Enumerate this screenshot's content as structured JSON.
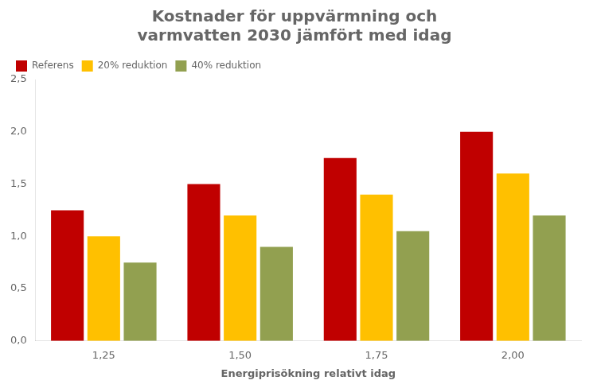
{
  "chart_data": {
    "type": "bar",
    "title": "Kostnader för uppvärmning och\nvarmvatten 2030 jämfört med idag",
    "xlabel": "Energiprisökning relativt idag",
    "categories": [
      "1,25",
      "1,50",
      "1,75",
      "2,00"
    ],
    "series": [
      {
        "name": "Referens",
        "color": "#C00000",
        "values": [
          1.25,
          1.5,
          1.75,
          2.0
        ]
      },
      {
        "name": "20% reduktion",
        "color": "#FFC000",
        "values": [
          1.0,
          1.2,
          1.4,
          1.6
        ]
      },
      {
        "name": "40% reduktion",
        "color": "#92A050",
        "values": [
          0.75,
          0.9,
          1.05,
          1.2
        ]
      }
    ],
    "ylim": [
      0,
      2.5
    ],
    "yticks": [
      {
        "value": 0.0,
        "label": "0,0"
      },
      {
        "value": 0.5,
        "label": "0,5"
      },
      {
        "value": 1.0,
        "label": "1,0"
      },
      {
        "value": 1.5,
        "label": "1,5"
      },
      {
        "value": 2.0,
        "label": "2,0"
      },
      {
        "value": 2.5,
        "label": "2,5"
      }
    ],
    "grid": false,
    "legend": "upper left"
  }
}
